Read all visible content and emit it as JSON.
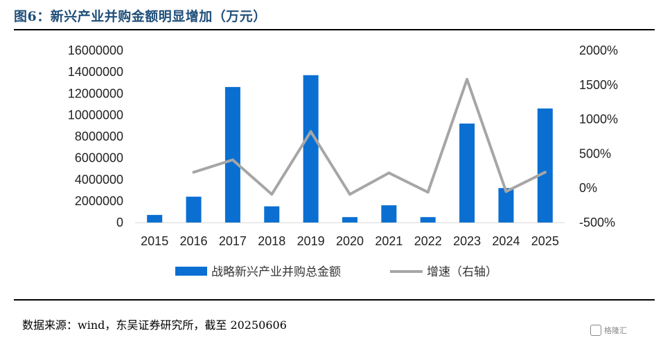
{
  "title": "图6：新兴产业并购金额明显增加（万元）",
  "source": "数据来源：wind，东吴证券研究所，截至 20250606",
  "watermark": "格隆汇",
  "colors": {
    "bar": "#0a6fd1",
    "line": "#a6a6a6",
    "title": "#1f4e79"
  },
  "chart_data": {
    "type": "bar",
    "categories": [
      "2015",
      "2016",
      "2017",
      "2018",
      "2019",
      "2020",
      "2021",
      "2022",
      "2023",
      "2024",
      "2025"
    ],
    "series": [
      {
        "name": "战略新兴产业并购总金额",
        "type": "bar",
        "axis": "left",
        "values": [
          700000,
          2400000,
          12600000,
          1500000,
          13700000,
          500000,
          1600000,
          500000,
          9200000,
          3200000,
          10600000
        ]
      },
      {
        "name": "增速（右轴）",
        "type": "line",
        "axis": "right",
        "values": [
          null,
          230,
          410,
          -90,
          820,
          -90,
          220,
          -60,
          1580,
          -50,
          230
        ]
      }
    ],
    "y_left": {
      "min": 0,
      "max": 16000000,
      "ticks": [
        "16000000",
        "14000000",
        "12000000",
        "10000000",
        "8000000",
        "6000000",
        "4000000",
        "2000000",
        "0"
      ]
    },
    "y_right": {
      "min": -500,
      "max": 2000,
      "ticks": [
        "2000%",
        "1500%",
        "1000%",
        "500%",
        "0%",
        "-500%"
      ]
    },
    "legend_position": "bottom",
    "grid": false
  }
}
